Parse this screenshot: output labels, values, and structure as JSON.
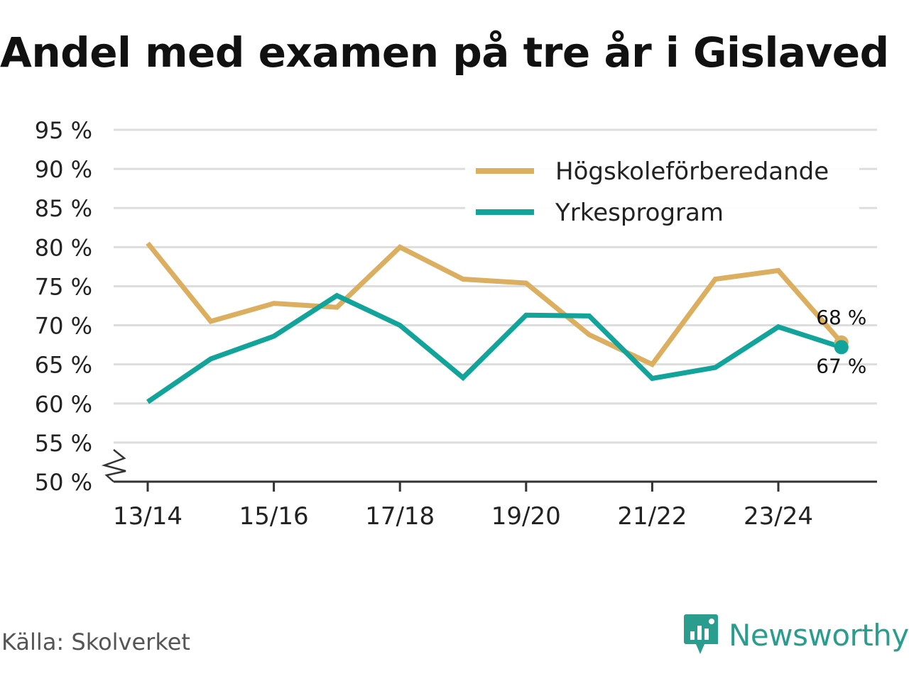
{
  "title": "Andel med examen på tre år i Gislaved",
  "source": "Källa: Skolverket",
  "brand": "Newsworthy",
  "colors": {
    "hogskole": "#dcae5f",
    "yrke": "#12a39a",
    "grid": "#dddddd",
    "axis": "#333333",
    "brand": "#2a9d8f"
  },
  "chart_data": {
    "type": "line",
    "title": "Andel med examen på tre år i Gislaved",
    "xlabel": "",
    "ylabel": "",
    "ylim": [
      50,
      95
    ],
    "yticks": [
      50,
      55,
      60,
      65,
      70,
      75,
      80,
      85,
      90,
      95
    ],
    "ytick_suffix": " %",
    "axis_break": true,
    "categories": [
      "13/14",
      "14/15",
      "15/16",
      "16/17",
      "17/18",
      "18/19",
      "19/20",
      "20/21",
      "21/22",
      "22/23",
      "23/24",
      "24/25"
    ],
    "xtick_labels": [
      "13/14",
      "15/16",
      "17/18",
      "19/20",
      "21/22",
      "23/24"
    ],
    "legend_position": "top-right",
    "series": [
      {
        "name": "Högskoleförberedande",
        "color": "#dcae5f",
        "values": [
          80.5,
          70.5,
          72.8,
          72.3,
          80.0,
          75.9,
          75.4,
          68.8,
          65.0,
          75.9,
          77.0,
          67.8
        ],
        "end_label": "68 %"
      },
      {
        "name": "Yrkesprogram",
        "color": "#12a39a",
        "values": [
          60.2,
          65.7,
          68.6,
          73.8,
          70.0,
          63.3,
          71.3,
          71.2,
          63.2,
          64.6,
          69.8,
          67.2
        ],
        "end_label": "67 %"
      }
    ]
  }
}
